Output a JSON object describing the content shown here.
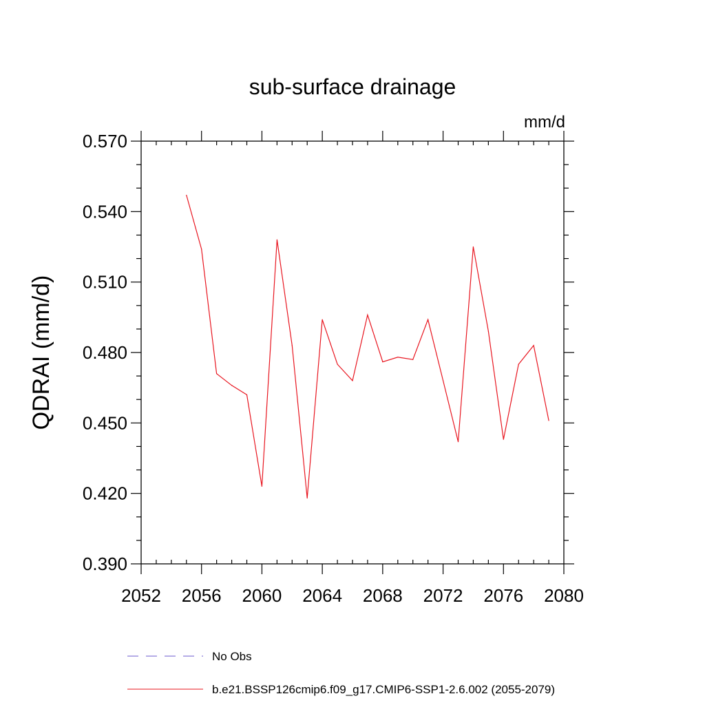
{
  "chart_data": {
    "type": "line",
    "title": "sub-surface drainage",
    "units": "mm/d",
    "ylabel": "QDRAI  (mm/d)",
    "xlabel": "",
    "xlim": [
      2052,
      2080
    ],
    "ylim": [
      0.39,
      0.57
    ],
    "xticks": [
      2052,
      2056,
      2060,
      2064,
      2068,
      2072,
      2076,
      2080
    ],
    "yticks": [
      0.39,
      0.42,
      0.45,
      0.48,
      0.51,
      0.54,
      0.57
    ],
    "xtick_labels": [
      "2052",
      "2056",
      "2060",
      "2064",
      "2068",
      "2072",
      "2076",
      "2080"
    ],
    "ytick_labels": [
      "0.390",
      "0.420",
      "0.450",
      "0.480",
      "0.510",
      "0.540",
      "0.570"
    ],
    "series": [
      {
        "name": "b.e21.BSSP126cmip6.f09_g17.CMIP6-SSP1-2.6.002 (2055-2079)",
        "color": "#e8141e",
        "style": "solid",
        "x": [
          2055,
          2056,
          2057,
          2058,
          2059,
          2060,
          2061,
          2062,
          2063,
          2064,
          2065,
          2066,
          2067,
          2068,
          2069,
          2070,
          2071,
          2072,
          2073,
          2074,
          2075,
          2076,
          2077,
          2078,
          2079
        ],
        "y": [
          0.547,
          0.524,
          0.471,
          0.466,
          0.462,
          0.423,
          0.528,
          0.483,
          0.418,
          0.494,
          0.475,
          0.468,
          0.496,
          0.476,
          0.478,
          0.477,
          0.494,
          0.468,
          0.442,
          0.525,
          0.489,
          0.443,
          0.475,
          0.483,
          0.451
        ]
      }
    ],
    "legend": [
      {
        "label": "No Obs",
        "color": "#6a5acd",
        "style": "dashed"
      },
      {
        "label": "b.e21.BSSP126cmip6.f09_g17.CMIP6-SSP1-2.6.002 (2055-2079)",
        "color": "#e8141e",
        "style": "solid"
      }
    ],
    "legend_position": "bottom-left"
  }
}
